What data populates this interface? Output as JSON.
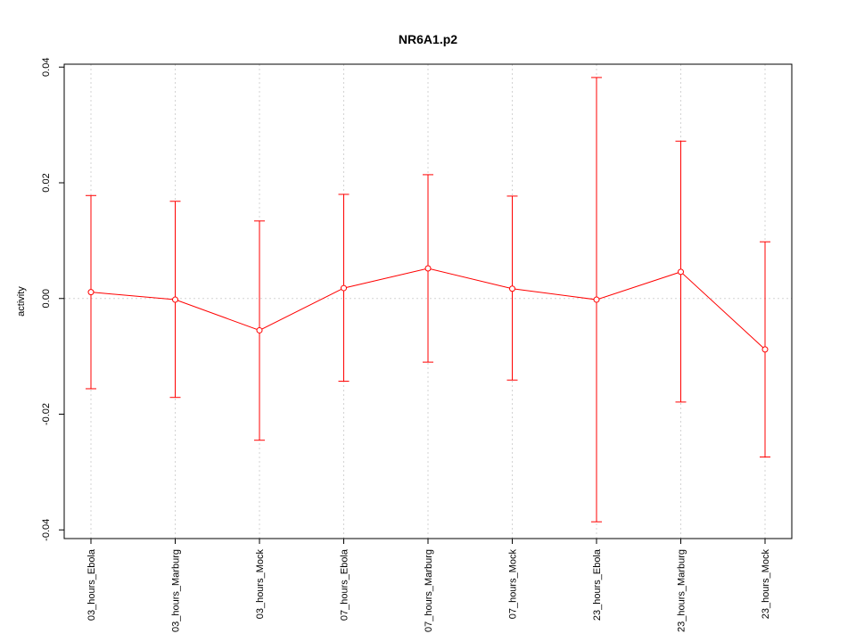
{
  "chart_data": {
    "type": "line",
    "title": "NR6A1.p2",
    "xlabel": "",
    "ylabel": "activity",
    "categories": [
      "03_hours_Ebola",
      "03_hours_Marburg",
      "03_hours_Mock",
      "07_hours_Ebola",
      "07_hours_Marburg",
      "07_hours_Mock",
      "23_hours_Ebola",
      "23_hours_Marburg",
      "23_hours_Mock"
    ],
    "series": [
      {
        "values": [
          0.0011,
          -0.0002,
          -0.0055,
          0.0018,
          0.0052,
          0.0017,
          -0.0002,
          0.0046,
          -0.0088
        ],
        "error_upper": [
          0.0178,
          0.0168,
          0.0134,
          0.018,
          0.0214,
          0.0177,
          0.0382,
          0.0272,
          0.0098
        ],
        "error_lower": [
          -0.0156,
          -0.0171,
          -0.0245,
          -0.0143,
          -0.011,
          -0.0141,
          -0.0386,
          -0.0179,
          -0.0274
        ]
      }
    ],
    "yticks": [
      "-0.04",
      "-0.02",
      "0.00",
      "0.02",
      "0.04"
    ],
    "ylim": [
      -0.0415,
      0.0405
    ],
    "grid": true,
    "colors": {
      "series": "#ff0000",
      "grid": "#d3d3d3",
      "axis": "#000000"
    }
  }
}
